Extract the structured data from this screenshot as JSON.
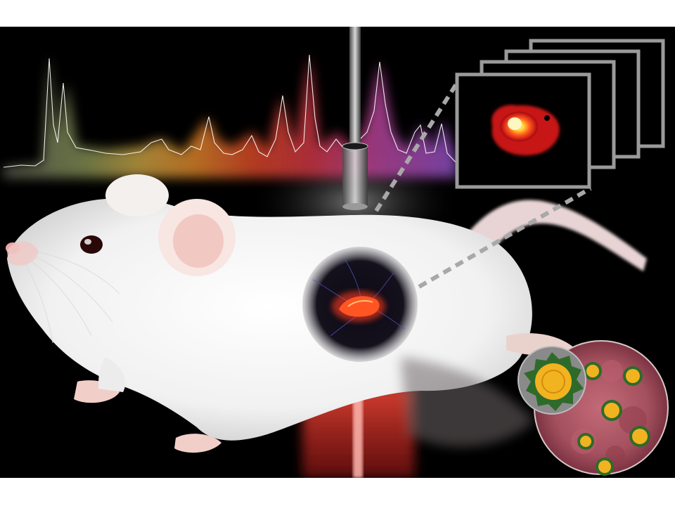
{
  "scene": {
    "background_color": "#000000",
    "page_color": "#ffffff",
    "spectrum_colors": [
      "#7a7a6a",
      "#c9b35a",
      "#f29a2e",
      "#ee5a28",
      "#e23a3a",
      "#c94aa0",
      "#9f56d6"
    ],
    "hotspot_color": "#ff5522",
    "laser_color": "#ff3a30",
    "frame_stroke": "#9a9a9a",
    "nanoparticle_core": "#f2b320",
    "nanoparticle_shell": "#2e6b2a",
    "tissue_color": "#a8505e",
    "subject": "mouse",
    "icons": [
      "spectrum-trace",
      "optical-fiber-probe",
      "image-stack",
      "nanoparticle-inset",
      "laser-beam"
    ]
  }
}
